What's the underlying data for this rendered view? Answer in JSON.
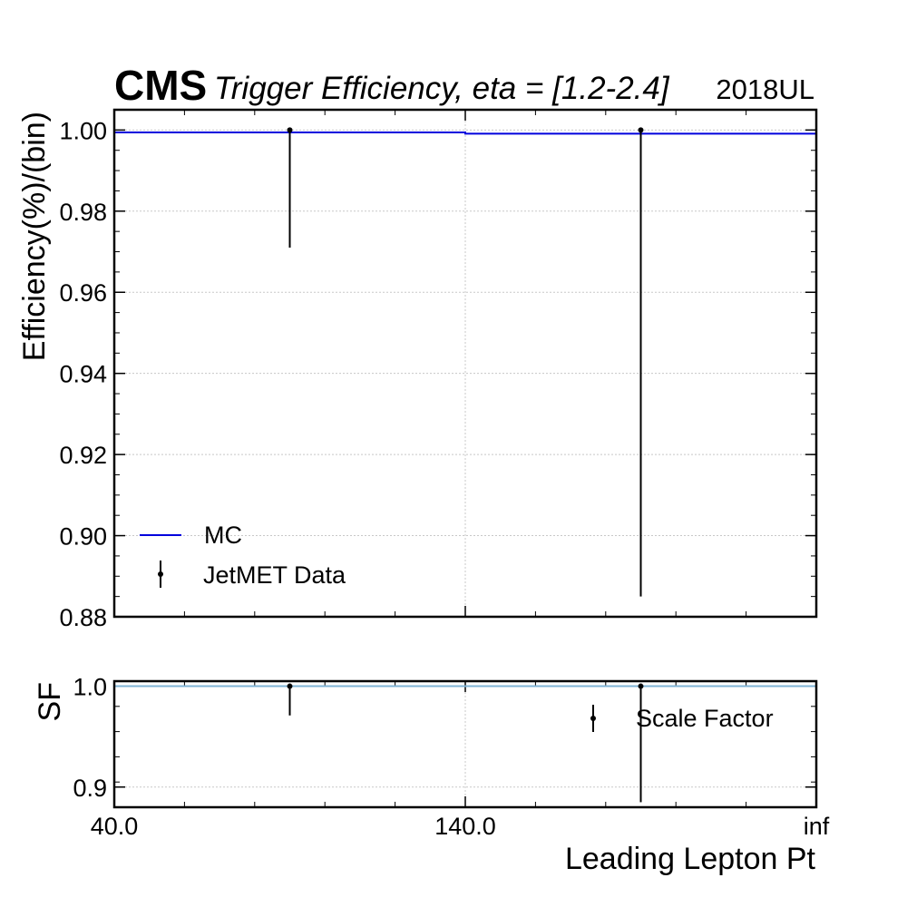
{
  "header": {
    "experiment": "CMS",
    "title": "Trigger Efficiency, eta = [1.2-2.4]",
    "year": "2018UL"
  },
  "chart_data": [
    {
      "type": "line",
      "panel": "main",
      "ylabel": "Efficiency(%)/(bin)",
      "ylim": [
        0.88,
        1.005
      ],
      "yticks": [
        "0.88",
        "0.90",
        "0.92",
        "0.94",
        "0.96",
        "0.98",
        "1.00"
      ],
      "ytick_values": [
        0.88,
        0.9,
        0.92,
        0.94,
        0.96,
        0.98,
        1.0
      ],
      "bin_edges_labels": [
        "40.0",
        "140.0",
        "inf"
      ],
      "grid": true,
      "legend_position": "lower-left",
      "series": [
        {
          "name": "MC",
          "kind": "step",
          "color": "#0000dd",
          "bins": [
            {
              "bin": 0,
              "value": 0.9994
            },
            {
              "bin": 1,
              "value": 0.9991
            }
          ]
        },
        {
          "name": "JetMET Data",
          "kind": "errorbar",
          "color": "#000000",
          "points": [
            {
              "bin": 0,
              "value": 1.0,
              "err_low": 0.029,
              "err_high": 0.0
            },
            {
              "bin": 1,
              "value": 1.0,
              "err_low": 0.115,
              "err_high": 0.0
            }
          ]
        }
      ]
    },
    {
      "type": "line",
      "panel": "ratio",
      "ylabel": "SF",
      "xlabel": "Leading Lepton Pt",
      "ylim": [
        0.88,
        1.005
      ],
      "yticks": [
        "0.9",
        "1.0"
      ],
      "ytick_values": [
        0.9,
        1.0
      ],
      "xticks": [
        "40.0",
        "140.0",
        "inf"
      ],
      "grid": true,
      "legend_position": "upper-right",
      "reference_line": {
        "value": 1.0,
        "color": "#7fb3d5"
      },
      "series": [
        {
          "name": "Scale Factor",
          "kind": "errorbar",
          "color": "#000000",
          "points": [
            {
              "bin": 0,
              "value": 1.0,
              "err_low": 0.029,
              "err_high": 0.0
            },
            {
              "bin": 1,
              "value": 1.0,
              "err_low": 0.115,
              "err_high": 0.0
            }
          ]
        }
      ]
    }
  ]
}
